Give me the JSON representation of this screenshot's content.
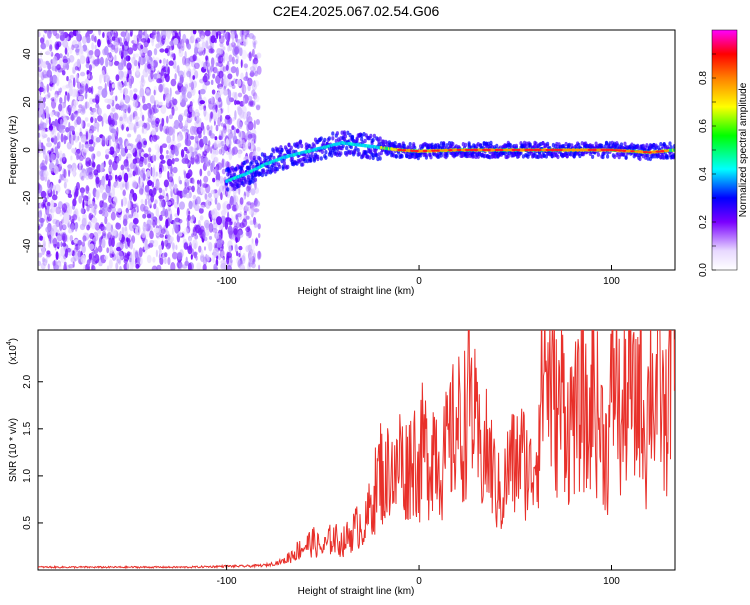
{
  "title": "C2E4.2025.067.02.54.G06",
  "chart_data": [
    {
      "type": "heatmap",
      "xlabel": "Height of straight line (km)",
      "ylabel": "Frequency (Hz)",
      "xlim": [
        -198,
        133
      ],
      "ylim": [
        -50,
        50
      ],
      "x_ticks": [
        -100,
        0,
        100
      ],
      "x_tick_labels": [
        "-100",
        "0",
        "100"
      ],
      "y_ticks": [
        -40,
        -20,
        0,
        20,
        40
      ],
      "y_tick_labels": [
        "-40",
        "-20",
        "0",
        "20",
        "40"
      ],
      "noise_region_x": [
        -198,
        -83
      ],
      "track": [
        {
          "x": -100,
          "f": -13
        },
        {
          "x": -90,
          "f": -10
        },
        {
          "x": -80,
          "f": -6
        },
        {
          "x": -70,
          "f": -3
        },
        {
          "x": -60,
          "f": -1
        },
        {
          "x": -50,
          "f": 1
        },
        {
          "x": -40,
          "f": 3
        },
        {
          "x": -30,
          "f": 2
        },
        {
          "x": -20,
          "f": 1
        },
        {
          "x": -10,
          "f": 0
        },
        {
          "x": 0,
          "f": -0.5
        },
        {
          "x": 20,
          "f": 0
        },
        {
          "x": 40,
          "f": 0
        },
        {
          "x": 60,
          "f": 0
        },
        {
          "x": 80,
          "f": 0
        },
        {
          "x": 100,
          "f": 0
        },
        {
          "x": 120,
          "f": -1
        },
        {
          "x": 133,
          "f": 0
        }
      ],
      "colorbar": {
        "label": "Normalized spectral amplitude",
        "ticks": [
          0.0,
          0.2,
          0.4,
          0.6,
          0.8
        ],
        "tick_labels": [
          "0.0",
          "0.2",
          "0.4",
          "0.6",
          "0.8"
        ],
        "range": [
          0,
          1
        ],
        "colors": [
          "#ffffff",
          "#e8d9ff",
          "#7a00ff",
          "#0000ff",
          "#00ffff",
          "#00ff00",
          "#ffff00",
          "#ff8000",
          "#ff0000",
          "#ff00ff"
        ]
      }
    },
    {
      "type": "line",
      "xlabel": "Height of straight line (km)",
      "ylabel": "SNR (10 * v/v)",
      "y_multiplier_label": "(x10",
      "y_multiplier_exp": "4",
      "xlim": [
        -198,
        133
      ],
      "ylim": [
        0,
        2.55
      ],
      "x_ticks": [
        -100,
        0,
        100
      ],
      "x_tick_labels": [
        "-100",
        "0",
        "100"
      ],
      "y_ticks": [
        0.5,
        1.0,
        1.5,
        2.0
      ],
      "y_tick_labels": [
        "0.5",
        "1.0",
        "1.5",
        "2.0"
      ],
      "series": [
        {
          "color": "#e8302a",
          "x": [
            -198,
            -180,
            -160,
            -140,
            -120,
            -100,
            -90,
            -80,
            -75,
            -70,
            -65,
            -60,
            -55,
            -50,
            -45,
            -40,
            -35,
            -30,
            -28,
            -25,
            -22,
            -20,
            -18,
            -15,
            -12,
            -10,
            -8,
            -5,
            -2,
            0,
            2,
            5,
            8,
            10,
            12,
            15,
            18,
            20,
            22,
            25,
            27,
            28,
            30,
            32,
            35,
            38,
            40,
            42,
            43,
            45,
            48,
            50,
            52,
            55,
            58,
            60,
            62,
            63,
            65,
            67,
            70,
            72,
            75,
            78,
            80,
            82,
            85,
            88,
            90,
            92,
            95,
            98,
            100,
            102,
            105,
            108,
            110,
            112,
            115,
            118,
            120,
            122,
            125,
            128,
            130,
            133
          ],
          "values": [
            0.03,
            0.03,
            0.03,
            0.03,
            0.03,
            0.04,
            0.04,
            0.05,
            0.07,
            0.1,
            0.18,
            0.25,
            0.3,
            0.22,
            0.35,
            0.28,
            0.4,
            0.5,
            0.45,
            0.7,
            0.9,
            1.1,
            0.85,
            1.2,
            0.9,
            1.3,
            1.0,
            1.15,
            1.25,
            1.0,
            1.35,
            1.15,
            1.4,
            1.2,
            1.1,
            1.3,
            1.45,
            1.6,
            1.35,
            1.75,
            1.9,
            1.7,
            1.35,
            1.2,
            1.25,
            1.1,
            0.85,
            0.8,
            0.75,
            0.95,
            1.2,
            1.05,
            1.25,
            1.15,
            1.0,
            1.2,
            1.4,
            1.75,
            2.3,
            2.05,
            1.8,
            1.6,
            1.9,
            1.4,
            1.8,
            1.5,
            1.9,
            1.3,
            2.1,
            1.7,
            1.5,
            1.2,
            1.85,
            2.2,
            1.4,
            1.9,
            2.0,
            1.6,
            2.15,
            1.3,
            2.2,
            1.8,
            2.05,
            1.4,
            2.25,
            2.45
          ]
        }
      ]
    }
  ]
}
